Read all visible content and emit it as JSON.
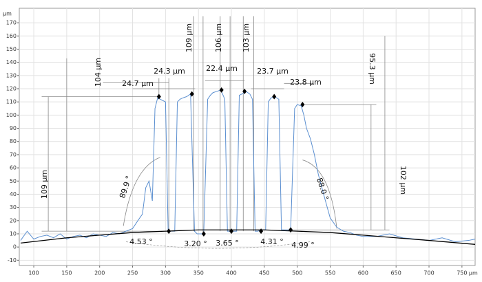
{
  "chart_data": {
    "type": "line",
    "x_label": "µm",
    "y_label": "µm",
    "xlim": [
      78,
      770
    ],
    "ylim": [
      -14,
      181
    ],
    "xticks": [
      100,
      150,
      200,
      250,
      300,
      350,
      400,
      450,
      500,
      550,
      600,
      650,
      700,
      750
    ],
    "yticks": [
      -10,
      0,
      10,
      20,
      30,
      40,
      50,
      60,
      70,
      80,
      90,
      100,
      110,
      120,
      130,
      140,
      150,
      160,
      170
    ],
    "grid": true,
    "series": [
      {
        "color": "#5b8fd0",
        "x": [
          80,
          90,
          100,
          110,
          120,
          130,
          140,
          150,
          160,
          170,
          180,
          190,
          200,
          210,
          220,
          230,
          240,
          250,
          258,
          265,
          270,
          275,
          280,
          284,
          288,
          292,
          296,
          300,
          304,
          308,
          314,
          318,
          322,
          326,
          332,
          338,
          344,
          348,
          352,
          358,
          364,
          368,
          372,
          378,
          384,
          390,
          394,
          398,
          402,
          408,
          412,
          416,
          422,
          428,
          432,
          436,
          440,
          446,
          452,
          456,
          460,
          466,
          472,
          476,
          480,
          486,
          490,
          496,
          500,
          506,
          510,
          514,
          520,
          526,
          532,
          540,
          550,
          560,
          570,
          580,
          590,
          600,
          620,
          640,
          660,
          680,
          700,
          720,
          740,
          760,
          770
        ],
        "values": [
          5,
          12,
          6,
          8,
          9,
          7,
          10,
          6,
          8,
          9,
          7,
          10,
          9,
          8,
          11,
          10,
          12,
          14,
          20,
          25,
          45,
          50,
          35,
          105,
          113,
          112,
          111,
          110,
          12,
          12,
          12,
          110,
          112,
          113,
          114,
          116,
          12,
          10,
          10,
          10,
          112,
          115,
          117,
          118,
          119,
          112,
          12,
          12,
          12,
          12,
          115,
          116,
          118,
          116,
          112,
          12,
          12,
          13,
          13,
          110,
          113,
          114,
          112,
          13,
          13,
          13,
          13,
          105,
          108,
          107,
          100,
          90,
          82,
          70,
          55,
          40,
          22,
          15,
          12,
          11,
          9,
          8,
          8,
          10,
          7,
          6,
          5,
          7,
          4,
          5,
          6
        ]
      },
      {
        "color": "#000000",
        "x": [
          80,
          150,
          200,
          250,
          300,
          350,
          400,
          450,
          500,
          550,
          600,
          650,
          700,
          770
        ],
        "values": [
          3,
          7,
          9,
          11,
          12,
          13,
          13,
          13,
          12,
          11,
          9,
          7,
          5,
          2
        ]
      },
      {
        "color": "#000000",
        "marker": "diamond",
        "x": [
          290,
          305,
          340,
          358,
          385,
          400,
          420,
          445,
          465,
          490,
          508
        ],
        "values": [
          114,
          12,
          116,
          10,
          119,
          12,
          118,
          12,
          114,
          13,
          108
        ]
      }
    ],
    "annotations": [
      "24.7 µm",
      "24.3 µm",
      "22.4 µm",
      "23.7 µm",
      "23.8 µm",
      "109 µm",
      "106 µm",
      "103 µm",
      "104 µm",
      "95.3 µm",
      "109 µm",
      "102 µm",
      "89.9 °",
      "88.0 °",
      "4.53 °",
      "3.20 °",
      "3.65 °",
      "4.31 °",
      "4.99 °"
    ]
  }
}
